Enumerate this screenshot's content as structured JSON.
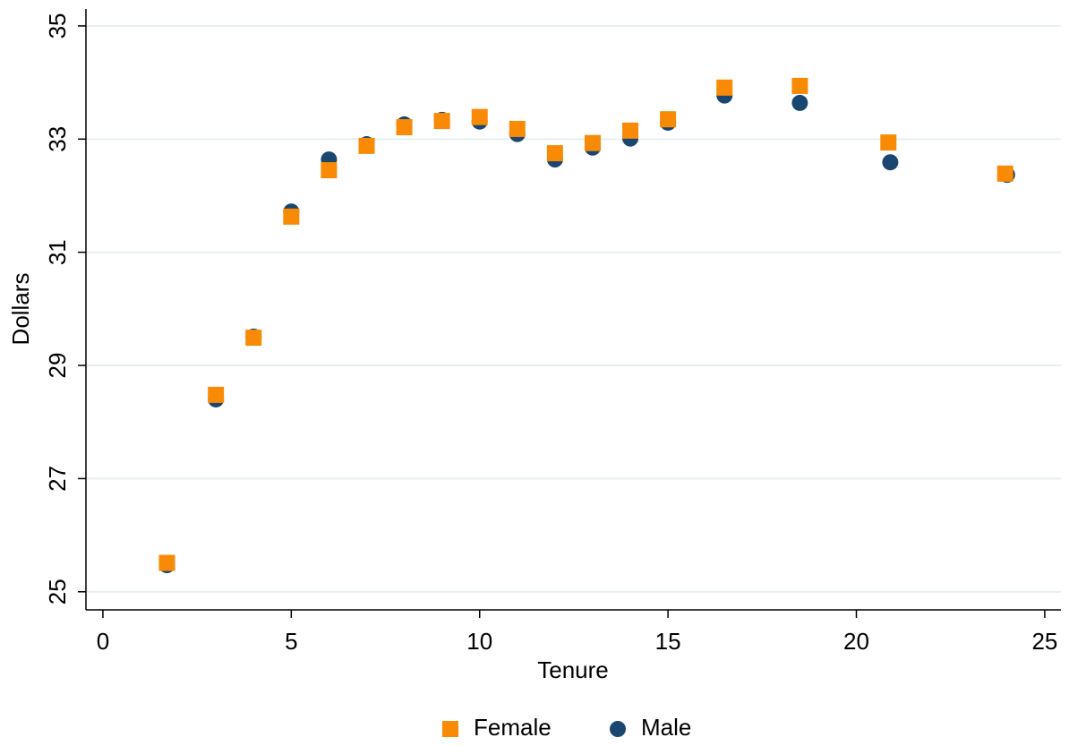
{
  "chart_data": {
    "type": "scatter",
    "x_label": "Tenure",
    "y_label": "Dollars",
    "xlim": [
      -0.45,
      25.43
    ],
    "ylim": [
      24.68,
      35.3
    ],
    "xticks": [
      0,
      5,
      10,
      15,
      20,
      25
    ],
    "yticks": [
      25,
      27,
      29,
      31,
      33,
      35
    ],
    "grid": true,
    "legend": "bottom",
    "series": [
      {
        "name": "Female",
        "color": "#f98a06",
        "marker": "square",
        "x": [
          1.7,
          3,
          4,
          5,
          6,
          7,
          8,
          9,
          10,
          11,
          12,
          13,
          14,
          15,
          16.5,
          18.5,
          20.85,
          23.95
        ],
        "values": [
          25.51,
          28.48,
          29.49,
          31.63,
          32.45,
          32.88,
          33.21,
          33.32,
          33.39,
          33.18,
          32.75,
          32.93,
          33.15,
          33.35,
          33.91,
          33.94,
          32.94,
          32.39
        ]
      },
      {
        "name": "Male",
        "color": "#1a476f",
        "marker": "circle",
        "x": [
          1.7,
          3,
          4,
          5,
          6,
          7,
          8,
          9,
          10,
          11,
          12,
          13,
          14,
          15,
          16.5,
          18.5,
          20.9,
          24
        ],
        "values": [
          25.47,
          28.4,
          29.51,
          31.72,
          32.64,
          32.91,
          33.26,
          33.34,
          33.31,
          33.09,
          32.64,
          32.85,
          33.01,
          33.29,
          33.77,
          33.64,
          32.59,
          32.37
        ]
      }
    ]
  }
}
